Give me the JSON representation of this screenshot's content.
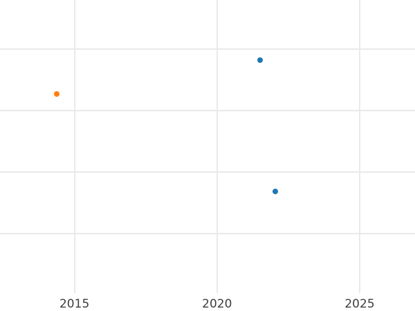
{
  "chart_data": {
    "type": "scatter",
    "title": "",
    "xlabel": "",
    "ylabel": "",
    "grid": true,
    "legend": false,
    "background_color": "#ffffff",
    "gridline_color": "#e9e9e9",
    "tick_label_color": "#3d3d3d",
    "marker_diameter_px": 8,
    "x_axis": {
      "range": [
        2012.39,
        2026.94
      ],
      "ticks": [
        {
          "label": "2015",
          "value": 2015
        },
        {
          "label": "2020",
          "value": 2020
        },
        {
          "label": "2025",
          "value": 2025
        }
      ]
    },
    "y_axis": {
      "labels_visible": false,
      "note": "No y tick labels are visible; y values are expressed in gridline-spacing units measured downward from the topmost visible horizontal gridline (0).",
      "gridline_units": [
        0,
        1,
        2,
        3
      ],
      "range_units": [
        -0.8,
        4.26
      ]
    },
    "series": [
      {
        "name": "blue-series",
        "color": "#1f77b4",
        "points": [
          {
            "x": 2021.51,
            "y_units": 0.18
          },
          {
            "x": 2022.05,
            "y_units": 2.31
          }
        ]
      },
      {
        "name": "orange-series",
        "color": "#ff7f0e",
        "points": [
          {
            "x": 2014.37,
            "y_units": 0.73
          }
        ]
      }
    ]
  }
}
